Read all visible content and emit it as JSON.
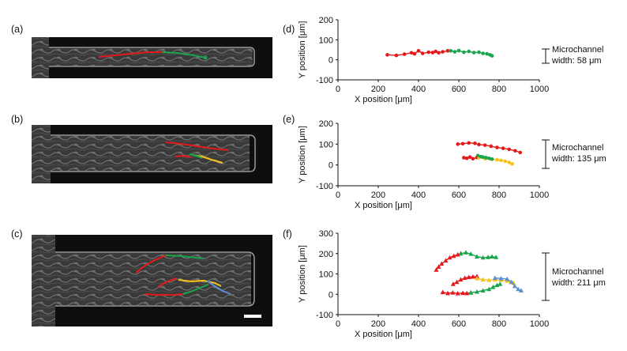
{
  "colors": {
    "red": "#e5191c",
    "green": "#18a54c",
    "yellow": "#f7c21a",
    "blue": "#5b8fce",
    "axis": "#111111",
    "micro_bg": "#0e0e0e",
    "scale_bar": "#ffffff"
  },
  "panels": {
    "a": "(a)",
    "b": "(b)",
    "c": "(c)",
    "d": "(d)",
    "e": "(e)",
    "f": "(f)"
  },
  "annotations": {
    "d": [
      "Microchannel",
      "width: 58 μm"
    ],
    "e": [
      "Microchannel",
      "width: 135 μm"
    ],
    "f": [
      "Microchannel",
      "width: 211 μm"
    ]
  },
  "chart_data": [
    {
      "id": "d",
      "type": "scatter",
      "xlabel": "X position [μm]",
      "ylabel": "Y position [μm]",
      "xlim": [
        0,
        1000
      ],
      "ylim": [
        -100,
        200
      ],
      "xticks": [
        "0",
        "200",
        "400",
        "600",
        "800",
        "1000"
      ],
      "yticks": [
        "-100",
        "0",
        "100",
        "200"
      ],
      "series": [
        {
          "name": "red",
          "color": "red",
          "marker": "circle",
          "x": [
            245,
            290,
            330,
            365,
            380,
            400,
            420,
            450,
            470,
            485,
            500,
            520,
            545
          ],
          "y": [
            25,
            22,
            28,
            35,
            30,
            45,
            32,
            38,
            36,
            42,
            35,
            40,
            45
          ]
        },
        {
          "name": "green",
          "color": "green",
          "marker": "circle",
          "x": [
            560,
            580,
            600,
            625,
            650,
            675,
            700,
            720,
            740,
            755,
            765
          ],
          "y": [
            45,
            40,
            46,
            38,
            42,
            36,
            38,
            32,
            30,
            25,
            20
          ]
        }
      ]
    },
    {
      "id": "e",
      "type": "scatter",
      "xlabel": "X position [μm]",
      "ylabel": "Y position [μm]",
      "xlim": [
        0,
        1000
      ],
      "ylim": [
        -100,
        200
      ],
      "xticks": [
        "0",
        "200",
        "400",
        "600",
        "800",
        "1000"
      ],
      "yticks": [
        "-100",
        "0",
        "100",
        "200"
      ],
      "series": [
        {
          "name": "red-top",
          "color": "red",
          "marker": "circle",
          "x": [
            595,
            620,
            650,
            680,
            700,
            730,
            760,
            790,
            820,
            850,
            880,
            905
          ],
          "y": [
            100,
            102,
            106,
            104,
            98,
            95,
            90,
            84,
            80,
            75,
            68,
            60
          ]
        },
        {
          "name": "red-low",
          "color": "red",
          "marker": "circle",
          "x": [
            625,
            640,
            655,
            670,
            690
          ],
          "y": [
            35,
            32,
            38,
            30,
            36
          ]
        },
        {
          "name": "yellow",
          "color": "yellow",
          "marker": "circle",
          "x": [
            700,
            730,
            760,
            790,
            810,
            830,
            850,
            865
          ],
          "y": [
            35,
            30,
            28,
            25,
            22,
            18,
            12,
            5
          ]
        },
        {
          "name": "green",
          "color": "green",
          "marker": "circle",
          "x": [
            695,
            710,
            720,
            735,
            750,
            765
          ],
          "y": [
            45,
            40,
            38,
            35,
            32,
            28
          ]
        }
      ]
    },
    {
      "id": "f",
      "type": "scatter",
      "xlabel": "X position [μm]",
      "ylabel": "Y position [μm]",
      "xlim": [
        0,
        1000
      ],
      "ylim": [
        -100,
        300
      ],
      "xticks": [
        "0",
        "200",
        "400",
        "600",
        "800",
        "1000"
      ],
      "yticks": [
        "-100",
        "0",
        "100",
        "200",
        "300"
      ],
      "series": [
        {
          "name": "red-top",
          "color": "red",
          "marker": "triangle",
          "x": [
            488,
            500,
            515,
            535,
            555,
            575,
            595,
            610
          ],
          "y": [
            120,
            135,
            150,
            165,
            180,
            188,
            195,
            200
          ]
        },
        {
          "name": "green-top",
          "color": "green",
          "marker": "triangle",
          "x": [
            610,
            635,
            660,
            690,
            720,
            745,
            765,
            785
          ],
          "y": [
            200,
            205,
            198,
            185,
            180,
            182,
            185,
            182
          ]
        },
        {
          "name": "red-mid",
          "color": "red",
          "marker": "triangle",
          "x": [
            572,
            590,
            610,
            630,
            650,
            670,
            690
          ],
          "y": [
            50,
            60,
            72,
            80,
            84,
            86,
            88
          ]
        },
        {
          "name": "yellow-mid",
          "color": "yellow",
          "marker": "triangle",
          "x": [
            690,
            720,
            750,
            780,
            810,
            840,
            860,
            872
          ],
          "y": [
            78,
            72,
            70,
            72,
            70,
            66,
            60,
            55
          ]
        },
        {
          "name": "blue-mid",
          "color": "blue",
          "marker": "triangle",
          "x": [
            780,
            810,
            840,
            862,
            878,
            895,
            910
          ],
          "y": [
            80,
            78,
            75,
            60,
            40,
            25,
            18
          ]
        },
        {
          "name": "red-low",
          "color": "red",
          "marker": "triangle",
          "x": [
            520,
            545,
            570,
            595,
            620,
            640,
            660
          ],
          "y": [
            10,
            5,
            8,
            4,
            6,
            5,
            8
          ]
        },
        {
          "name": "green-low",
          "color": "green",
          "marker": "triangle",
          "x": [
            660,
            690,
            720,
            750,
            770,
            790,
            805
          ],
          "y": [
            8,
            12,
            18,
            25,
            35,
            45,
            50
          ]
        }
      ]
    }
  ]
}
